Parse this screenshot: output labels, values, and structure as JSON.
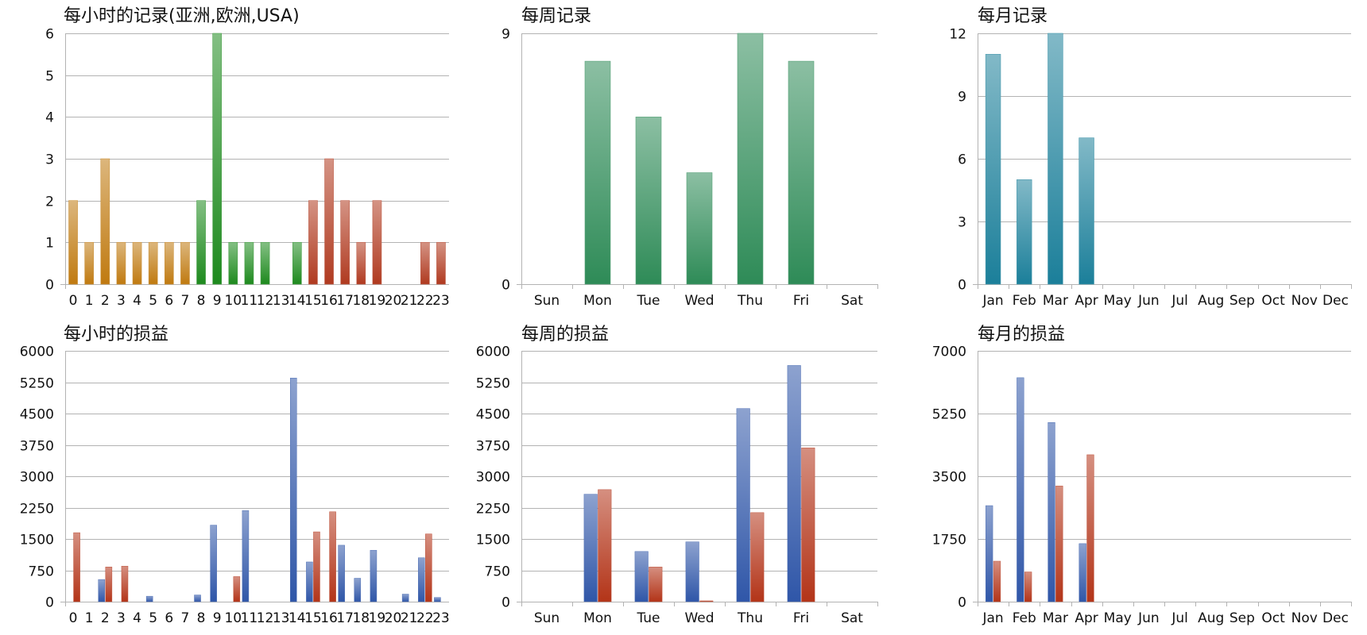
{
  "chart_data": [
    {
      "type": "bar",
      "title": "每小时的记录(亚洲,欧洲,USA)",
      "categories": [
        "0",
        "1",
        "2",
        "3",
        "4",
        "5",
        "6",
        "7",
        "8",
        "9",
        "10",
        "11",
        "12",
        "13",
        "14",
        "15",
        "16",
        "17",
        "18",
        "19",
        "20",
        "21",
        "22",
        "23"
      ],
      "values": [
        2,
        1,
        3,
        1,
        1,
        1,
        1,
        1,
        2,
        6,
        1,
        1,
        1,
        0,
        1,
        2,
        3,
        2,
        1,
        2,
        0,
        0,
        1,
        1
      ],
      "bar_colors": [
        "#c07a10",
        "#c07a10",
        "#c07a10",
        "#c07a10",
        "#c07a10",
        "#c07a10",
        "#c07a10",
        "#c07a10",
        "#1e8a1e",
        "#1e8a1e",
        "#1e8a1e",
        "#1e8a1e",
        "#1e8a1e",
        "#1e8a1e",
        "#1e8a1e",
        "#b03a20",
        "#b03a20",
        "#b03a20",
        "#b03a20",
        "#b03a20",
        "#b03a20",
        "#b03a20",
        "#b03a20",
        "#b03a20"
      ],
      "yticks": [
        "0",
        "1",
        "2",
        "3",
        "4",
        "5",
        "6"
      ],
      "ylim": [
        0,
        6
      ],
      "grid": true
    },
    {
      "type": "bar",
      "title": "每周记录",
      "categories": [
        "Sun",
        "Mon",
        "Tue",
        "Wed",
        "Thu",
        "Fri",
        "Sat"
      ],
      "values": [
        0,
        8,
        6,
        4,
        9,
        8,
        0
      ],
      "bar_colors": [
        "#2e8b57"
      ],
      "yticks": [
        "0",
        "9"
      ],
      "ylim": [
        0,
        9
      ],
      "grid": true
    },
    {
      "type": "bar",
      "title": "每月记录",
      "categories": [
        "Jan",
        "Feb",
        "Mar",
        "Apr",
        "May",
        "Jun",
        "Jul",
        "Aug",
        "Sep",
        "Oct",
        "Nov",
        "Dec"
      ],
      "values": [
        11,
        5,
        12,
        7,
        0,
        0,
        0,
        0,
        0,
        0,
        0,
        0
      ],
      "bar_colors": [
        "#1b7f9a"
      ],
      "yticks": [
        "0",
        "3",
        "6",
        "9",
        "12"
      ],
      "ylim": [
        0,
        12
      ],
      "grid": true
    },
    {
      "type": "bar",
      "title": "每小时的损益",
      "categories": [
        "0",
        "1",
        "2",
        "3",
        "4",
        "5",
        "6",
        "7",
        "8",
        "9",
        "10",
        "11",
        "12",
        "13",
        "14",
        "15",
        "16",
        "17",
        "18",
        "19",
        "20",
        "21",
        "22",
        "23"
      ],
      "series": [
        {
          "color": "#2f56a8",
          "values": [
            0,
            0,
            530,
            0,
            0,
            130,
            0,
            0,
            160,
            1830,
            0,
            2180,
            0,
            0,
            5350,
            950,
            0,
            1350,
            560,
            1230,
            0,
            180,
            1050,
            100
          ]
        },
        {
          "color": "#b33418",
          "values": [
            1650,
            0,
            830,
            850,
            0,
            0,
            0,
            0,
            0,
            0,
            600,
            0,
            0,
            0,
            0,
            1670,
            2150,
            0,
            0,
            0,
            0,
            0,
            1620,
            0
          ]
        }
      ],
      "yticks": [
        "0",
        "750",
        "1500",
        "2250",
        "3000",
        "3750",
        "4500",
        "5250",
        "6000"
      ],
      "ylim": [
        0,
        6000
      ],
      "grid": true
    },
    {
      "type": "bar",
      "title": "每周的损益",
      "categories": [
        "Sun",
        "Mon",
        "Tue",
        "Wed",
        "Thu",
        "Fri",
        "Sat"
      ],
      "series": [
        {
          "color": "#2f56a8",
          "values": [
            0,
            2570,
            1200,
            1430,
            4620,
            5650,
            0
          ]
        },
        {
          "color": "#b33418",
          "values": [
            0,
            2680,
            830,
            20,
            2130,
            3680,
            0
          ]
        }
      ],
      "yticks": [
        "0",
        "750",
        "1500",
        "2250",
        "3000",
        "3750",
        "4500",
        "5250",
        "6000"
      ],
      "ylim": [
        0,
        6000
      ],
      "grid": true
    },
    {
      "type": "bar",
      "title": "每月的损益",
      "categories": [
        "Jan",
        "Feb",
        "Mar",
        "Apr",
        "May",
        "Jun",
        "Jul",
        "Aug",
        "Sep",
        "Oct",
        "Nov",
        "Dec"
      ],
      "series": [
        {
          "color": "#2f56a8",
          "values": [
            2680,
            6250,
            5000,
            1620,
            0,
            0,
            0,
            0,
            0,
            0,
            0,
            0
          ]
        },
        {
          "color": "#b33418",
          "values": [
            1130,
            830,
            3230,
            4100,
            0,
            0,
            0,
            0,
            0,
            0,
            0,
            0
          ]
        }
      ],
      "yticks": [
        "0",
        "1750",
        "3500",
        "5250",
        "7000"
      ],
      "ylim": [
        0,
        7000
      ],
      "grid": true
    }
  ]
}
